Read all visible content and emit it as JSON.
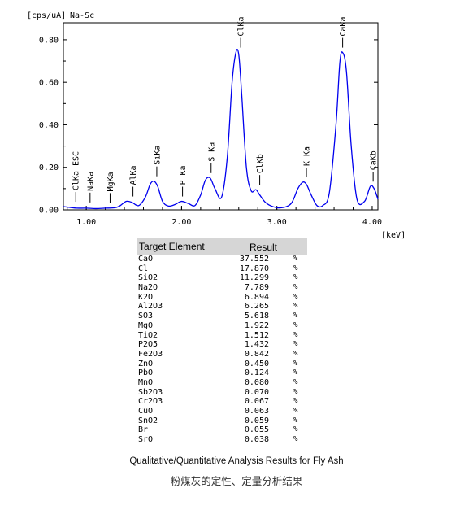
{
  "chart_data": {
    "type": "line",
    "title": "Na-Sc",
    "ylabel": "[cps/uA]",
    "xlabel": "[keV]",
    "xlim": [
      0.76,
      4.06
    ],
    "ylim": [
      0,
      0.88
    ],
    "x_ticks": [
      1.0,
      2.0,
      3.0,
      4.0
    ],
    "x_tick_labels": [
      "1.00",
      "2.00",
      "3.00",
      "4.00"
    ],
    "y_ticks": [
      0.0,
      0.2,
      0.4,
      0.6,
      0.8
    ],
    "y_tick_labels": [
      "0.00",
      "0.20",
      "0.40",
      "0.60",
      "0.80"
    ],
    "grid": false,
    "line_color": "#0000ee",
    "series": [
      {
        "x": [
          0.76,
          0.82,
          0.9,
          1.0,
          1.1,
          1.2,
          1.3,
          1.35,
          1.42,
          1.48,
          1.55,
          1.62,
          1.67,
          1.71,
          1.75,
          1.8,
          1.86,
          1.93,
          2.0,
          2.07,
          2.14,
          2.2,
          2.25,
          2.3,
          2.35,
          2.42,
          2.48,
          2.53,
          2.57,
          2.6,
          2.63,
          2.68,
          2.73,
          2.78,
          2.82,
          2.88,
          2.96,
          3.05,
          3.15,
          3.22,
          3.27,
          3.31,
          3.36,
          3.42,
          3.48,
          3.55,
          3.62,
          3.66,
          3.69,
          3.73,
          3.78,
          3.84,
          3.92,
          3.98,
          4.02,
          4.06
        ],
        "y": [
          0.015,
          0.012,
          0.008,
          0.008,
          0.006,
          0.008,
          0.01,
          0.018,
          0.04,
          0.035,
          0.02,
          0.06,
          0.12,
          0.135,
          0.11,
          0.04,
          0.018,
          0.025,
          0.04,
          0.03,
          0.02,
          0.07,
          0.14,
          0.15,
          0.1,
          0.06,
          0.25,
          0.6,
          0.74,
          0.73,
          0.55,
          0.2,
          0.09,
          0.095,
          0.07,
          0.035,
          0.015,
          0.01,
          0.03,
          0.1,
          0.13,
          0.12,
          0.07,
          0.02,
          0.02,
          0.08,
          0.4,
          0.69,
          0.74,
          0.65,
          0.3,
          0.05,
          0.04,
          0.11,
          0.1,
          0.05
        ]
      }
    ],
    "annotations": [
      {
        "label": "ClKa ESC",
        "x": 0.89,
        "y": 0.015
      },
      {
        "label": "NaKa",
        "x": 1.04,
        "y": 0.012
      },
      {
        "label": "MgKa",
        "x": 1.25,
        "y": 0.01
      },
      {
        "label": "AlKa",
        "x": 1.49,
        "y": 0.04
      },
      {
        "label": "SiKa",
        "x": 1.74,
        "y": 0.135
      },
      {
        "label": "P Ka",
        "x": 2.01,
        "y": 0.04
      },
      {
        "label": "S Ka",
        "x": 2.31,
        "y": 0.15
      },
      {
        "label": "ClKa",
        "x": 2.62,
        "y": 0.74
      },
      {
        "label": "ClKb",
        "x": 2.82,
        "y": 0.095
      },
      {
        "label": "K Ka",
        "x": 3.31,
        "y": 0.13
      },
      {
        "label": "CaKa",
        "x": 3.69,
        "y": 0.74
      },
      {
        "label": "CaKb",
        "x": 4.01,
        "y": 0.11
      }
    ]
  },
  "table": {
    "header_element": "Target Element",
    "header_result": "Result",
    "rows": [
      {
        "element": "CaO",
        "result": "37.552",
        "unit": "%"
      },
      {
        "element": "Cl",
        "result": "17.870",
        "unit": "%"
      },
      {
        "element": "SiO2",
        "result": "11.299",
        "unit": "%"
      },
      {
        "element": "Na2O",
        "result": "7.789",
        "unit": "%"
      },
      {
        "element": "K2O",
        "result": "6.894",
        "unit": "%"
      },
      {
        "element": "Al2O3",
        "result": "6.265",
        "unit": "%"
      },
      {
        "element": "SO3",
        "result": "5.618",
        "unit": "%"
      },
      {
        "element": "MgO",
        "result": "1.922",
        "unit": "%"
      },
      {
        "element": "TiO2",
        "result": "1.512",
        "unit": "%"
      },
      {
        "element": "P2O5",
        "result": "1.432",
        "unit": "%"
      },
      {
        "element": "Fe2O3",
        "result": "0.842",
        "unit": "%"
      },
      {
        "element": "ZnO",
        "result": "0.450",
        "unit": "%"
      },
      {
        "element": "PbO",
        "result": "0.124",
        "unit": "%"
      },
      {
        "element": "MnO",
        "result": "0.080",
        "unit": "%"
      },
      {
        "element": "Sb2O3",
        "result": "0.070",
        "unit": "%"
      },
      {
        "element": "Cr2O3",
        "result": "0.067",
        "unit": "%"
      },
      {
        "element": "CuO",
        "result": "0.063",
        "unit": "%"
      },
      {
        "element": "SnO2",
        "result": "0.059",
        "unit": "%"
      },
      {
        "element": "Br",
        "result": "0.055",
        "unit": "%"
      },
      {
        "element": "SrO",
        "result": "0.038",
        "unit": "%"
      }
    ]
  },
  "caption": {
    "english": "Qualitative/Quantitative Analysis Results for Fly Ash",
    "chinese": "粉煤灰的定性、定量分析结果"
  }
}
